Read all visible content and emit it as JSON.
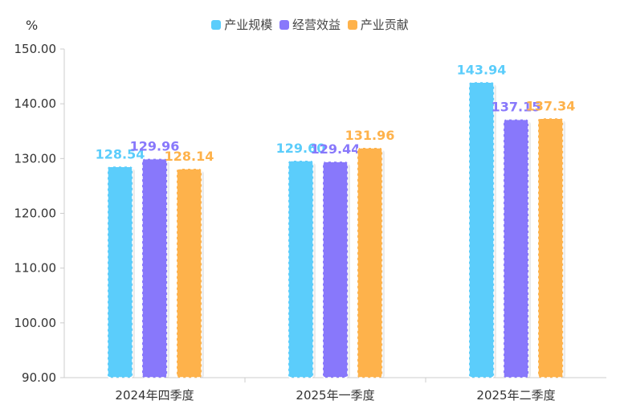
{
  "chart_data": {
    "type": "bar",
    "unit_label": "%",
    "categories": [
      "2024年四季度",
      "2025年一季度",
      "2025年二季度"
    ],
    "series": [
      {
        "name": "产业规模",
        "color": "#5bcdfb",
        "values": [
          128.54,
          129.6,
          143.94
        ]
      },
      {
        "name": "经营效益",
        "color": "#8878fb",
        "values": [
          129.96,
          129.44,
          137.15
        ]
      },
      {
        "name": "产业贡献",
        "color": "#feb24b",
        "values": [
          128.14,
          131.96,
          137.34
        ]
      }
    ],
    "ylim": [
      90,
      150
    ],
    "yticks": [
      "90.00",
      "100.00",
      "110.00",
      "120.00",
      "130.00",
      "140.00",
      "150.00"
    ],
    "grid": false,
    "legend_position": "top-center"
  }
}
